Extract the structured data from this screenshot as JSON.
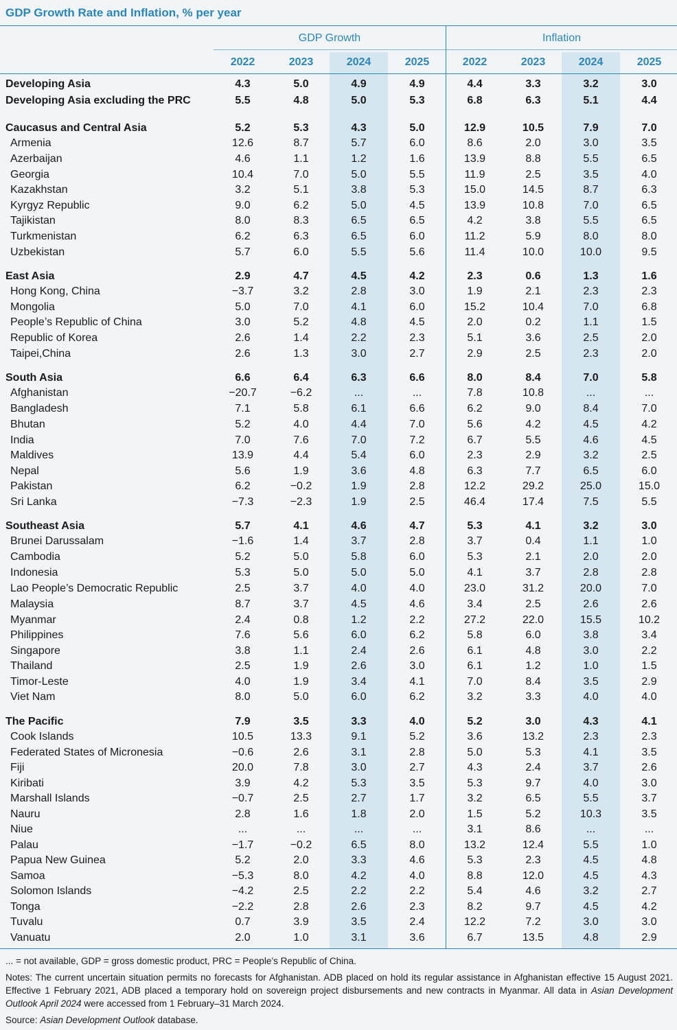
{
  "title": "GDP Growth Rate and Inflation, % per year",
  "groups": [
    "GDP Growth",
    "Inflation"
  ],
  "years": [
    "2022",
    "2023",
    "2024",
    "2025",
    "2022",
    "2023",
    "2024",
    "2025"
  ],
  "colors": {
    "accent": "#2a86b8",
    "shade": "#d5e6f1",
    "background": "#f2f5f8"
  },
  "rows": [
    {
      "name": "Developing Asia",
      "bold": true,
      "values": [
        "4.3",
        "5.0",
        "4.9",
        "4.9",
        "4.4",
        "3.3",
        "3.2",
        "3.0"
      ]
    },
    {
      "name": "Developing Asia excluding the PRC",
      "bold": true,
      "values": [
        "5.5",
        "4.8",
        "5.0",
        "5.3",
        "6.8",
        "6.3",
        "5.1",
        "4.4"
      ]
    },
    {
      "name": "Caucasus and Central Asia",
      "bold": true,
      "values": [
        "5.2",
        "5.3",
        "4.3",
        "5.0",
        "12.9",
        "10.5",
        "7.9",
        "7.0"
      ]
    },
    {
      "name": "Armenia",
      "values": [
        "12.6",
        "8.7",
        "5.7",
        "6.0",
        "8.6",
        "2.0",
        "3.0",
        "3.5"
      ]
    },
    {
      "name": "Azerbaijan",
      "values": [
        "4.6",
        "1.1",
        "1.2",
        "1.6",
        "13.9",
        "8.8",
        "5.5",
        "6.5"
      ]
    },
    {
      "name": "Georgia",
      "values": [
        "10.4",
        "7.0",
        "5.0",
        "5.5",
        "11.9",
        "2.5",
        "3.5",
        "4.0"
      ]
    },
    {
      "name": "Kazakhstan",
      "values": [
        "3.2",
        "5.1",
        "3.8",
        "5.3",
        "15.0",
        "14.5",
        "8.7",
        "6.3"
      ]
    },
    {
      "name": "Kyrgyz Republic",
      "values": [
        "9.0",
        "6.2",
        "5.0",
        "4.5",
        "13.9",
        "10.8",
        "7.0",
        "6.5"
      ]
    },
    {
      "name": "Tajikistan",
      "values": [
        "8.0",
        "8.3",
        "6.5",
        "6.5",
        "4.2",
        "3.8",
        "5.5",
        "6.5"
      ]
    },
    {
      "name": "Turkmenistan",
      "values": [
        "6.2",
        "6.3",
        "6.5",
        "6.0",
        "11.2",
        "5.9",
        "8.0",
        "8.0"
      ]
    },
    {
      "name": "Uzbekistan",
      "values": [
        "5.7",
        "6.0",
        "5.5",
        "5.6",
        "11.4",
        "10.0",
        "10.0",
        "9.5"
      ]
    },
    {
      "name": "East Asia",
      "bold": true,
      "values": [
        "2.9",
        "4.7",
        "4.5",
        "4.2",
        "2.3",
        "0.6",
        "1.3",
        "1.6"
      ]
    },
    {
      "name": "Hong Kong, China",
      "values": [
        "−3.7",
        "3.2",
        "2.8",
        "3.0",
        "1.9",
        "2.1",
        "2.3",
        "2.3"
      ]
    },
    {
      "name": "Mongolia",
      "values": [
        "5.0",
        "7.0",
        "4.1",
        "6.0",
        "15.2",
        "10.4",
        "7.0",
        "6.8"
      ]
    },
    {
      "name": "People’s Republic of China",
      "values": [
        "3.0",
        "5.2",
        "4.8",
        "4.5",
        "2.0",
        "0.2",
        "1.1",
        "1.5"
      ]
    },
    {
      "name": "Republic of Korea",
      "values": [
        "2.6",
        "1.4",
        "2.2",
        "2.3",
        "5.1",
        "3.6",
        "2.5",
        "2.0"
      ]
    },
    {
      "name": "Taipei,China",
      "values": [
        "2.6",
        "1.3",
        "3.0",
        "2.7",
        "2.9",
        "2.5",
        "2.3",
        "2.0"
      ]
    },
    {
      "name": "South Asia",
      "bold": true,
      "values": [
        "6.6",
        "6.4",
        "6.3",
        "6.6",
        "8.0",
        "8.4",
        "7.0",
        "5.8"
      ]
    },
    {
      "name": "Afghanistan",
      "values": [
        "−20.7",
        "−6.2",
        "...",
        "...",
        "7.8",
        "10.8",
        "...",
        "..."
      ]
    },
    {
      "name": "Bangladesh",
      "values": [
        "7.1",
        "5.8",
        "6.1",
        "6.6",
        "6.2",
        "9.0",
        "8.4",
        "7.0"
      ]
    },
    {
      "name": "Bhutan",
      "values": [
        "5.2",
        "4.0",
        "4.4",
        "7.0",
        "5.6",
        "4.2",
        "4.5",
        "4.2"
      ]
    },
    {
      "name": "India",
      "values": [
        "7.0",
        "7.6",
        "7.0",
        "7.2",
        "6.7",
        "5.5",
        "4.6",
        "4.5"
      ]
    },
    {
      "name": "Maldives",
      "values": [
        "13.9",
        "4.4",
        "5.4",
        "6.0",
        "2.3",
        "2.9",
        "3.2",
        "2.5"
      ]
    },
    {
      "name": "Nepal",
      "values": [
        "5.6",
        "1.9",
        "3.6",
        "4.8",
        "6.3",
        "7.7",
        "6.5",
        "6.0"
      ]
    },
    {
      "name": "Pakistan",
      "values": [
        "6.2",
        "−0.2",
        "1.9",
        "2.8",
        "12.2",
        "29.2",
        "25.0",
        "15.0"
      ]
    },
    {
      "name": "Sri Lanka",
      "values": [
        "−7.3",
        "−2.3",
        "1.9",
        "2.5",
        "46.4",
        "17.4",
        "7.5",
        "5.5"
      ]
    },
    {
      "name": "Southeast Asia",
      "bold": true,
      "values": [
        "5.7",
        "4.1",
        "4.6",
        "4.7",
        "5.3",
        "4.1",
        "3.2",
        "3.0"
      ]
    },
    {
      "name": "Brunei Darussalam",
      "values": [
        "−1.6",
        "1.4",
        "3.7",
        "2.8",
        "3.7",
        "0.4",
        "1.1",
        "1.0"
      ]
    },
    {
      "name": "Cambodia",
      "values": [
        "5.2",
        "5.0",
        "5.8",
        "6.0",
        "5.3",
        "2.1",
        "2.0",
        "2.0"
      ]
    },
    {
      "name": "Indonesia",
      "values": [
        "5.3",
        "5.0",
        "5.0",
        "5.0",
        "4.1",
        "3.7",
        "2.8",
        "2.8"
      ]
    },
    {
      "name": "Lao People’s Democratic Republic",
      "values": [
        "2.5",
        "3.7",
        "4.0",
        "4.0",
        "23.0",
        "31.2",
        "20.0",
        "7.0"
      ]
    },
    {
      "name": "Malaysia",
      "values": [
        "8.7",
        "3.7",
        "4.5",
        "4.6",
        "3.4",
        "2.5",
        "2.6",
        "2.6"
      ]
    },
    {
      "name": "Myanmar",
      "values": [
        "2.4",
        "0.8",
        "1.2",
        "2.2",
        "27.2",
        "22.0",
        "15.5",
        "10.2"
      ]
    },
    {
      "name": "Philippines",
      "values": [
        "7.6",
        "5.6",
        "6.0",
        "6.2",
        "5.8",
        "6.0",
        "3.8",
        "3.4"
      ]
    },
    {
      "name": "Singapore",
      "values": [
        "3.8",
        "1.1",
        "2.4",
        "2.6",
        "6.1",
        "4.8",
        "3.0",
        "2.2"
      ]
    },
    {
      "name": "Thailand",
      "values": [
        "2.5",
        "1.9",
        "2.6",
        "3.0",
        "6.1",
        "1.2",
        "1.0",
        "1.5"
      ]
    },
    {
      "name": "Timor-Leste",
      "values": [
        "4.0",
        "1.9",
        "3.4",
        "4.1",
        "7.0",
        "8.4",
        "3.5",
        "2.9"
      ]
    },
    {
      "name": "Viet Nam",
      "values": [
        "8.0",
        "5.0",
        "6.0",
        "6.2",
        "3.2",
        "3.3",
        "4.0",
        "4.0"
      ]
    },
    {
      "name": "The Pacific",
      "bold": true,
      "values": [
        "7.9",
        "3.5",
        "3.3",
        "4.0",
        "5.2",
        "3.0",
        "4.3",
        "4.1"
      ]
    },
    {
      "name": "Cook Islands",
      "values": [
        "10.5",
        "13.3",
        "9.1",
        "5.2",
        "3.6",
        "13.2",
        "2.3",
        "2.3"
      ]
    },
    {
      "name": "Federated States of Micronesia",
      "values": [
        "−0.6",
        "2.6",
        "3.1",
        "2.8",
        "5.0",
        "5.3",
        "4.1",
        "3.5"
      ]
    },
    {
      "name": "Fiji",
      "values": [
        "20.0",
        "7.8",
        "3.0",
        "2.7",
        "4.3",
        "2.4",
        "3.7",
        "2.6"
      ]
    },
    {
      "name": "Kiribati",
      "values": [
        "3.9",
        "4.2",
        "5.3",
        "3.5",
        "5.3",
        "9.7",
        "4.0",
        "3.0"
      ]
    },
    {
      "name": "Marshall Islands",
      "values": [
        "−0.7",
        "2.5",
        "2.7",
        "1.7",
        "3.2",
        "6.5",
        "5.5",
        "3.7"
      ]
    },
    {
      "name": "Nauru",
      "values": [
        "2.8",
        "1.6",
        "1.8",
        "2.0",
        "1.5",
        "5.2",
        "10.3",
        "3.5"
      ]
    },
    {
      "name": "Niue",
      "values": [
        "...",
        "...",
        "...",
        "...",
        "3.1",
        "8.6",
        "...",
        "..."
      ]
    },
    {
      "name": "Palau",
      "values": [
        "−1.7",
        "−0.2",
        "6.5",
        "8.0",
        "13.2",
        "12.4",
        "5.5",
        "1.0"
      ]
    },
    {
      "name": "Papua New Guinea",
      "values": [
        "5.2",
        "2.0",
        "3.3",
        "4.6",
        "5.3",
        "2.3",
        "4.5",
        "4.8"
      ]
    },
    {
      "name": "Samoa",
      "values": [
        "−5.3",
        "8.0",
        "4.2",
        "4.0",
        "8.8",
        "12.0",
        "4.5",
        "4.3"
      ]
    },
    {
      "name": "Solomon Islands",
      "values": [
        "−4.2",
        "2.5",
        "2.2",
        "2.2",
        "5.4",
        "4.6",
        "3.2",
        "2.7"
      ]
    },
    {
      "name": "Tonga",
      "values": [
        "−2.2",
        "2.8",
        "2.6",
        "2.3",
        "8.2",
        "9.7",
        "4.5",
        "4.2"
      ]
    },
    {
      "name": "Tuvalu",
      "values": [
        "0.7",
        "3.9",
        "3.5",
        "2.4",
        "12.2",
        "7.2",
        "3.0",
        "3.0"
      ]
    },
    {
      "name": "Vanuatu",
      "values": [
        "2.0",
        "1.0",
        "3.1",
        "3.6",
        "6.7",
        "13.5",
        "4.8",
        "2.9"
      ]
    }
  ],
  "footnotes": {
    "abbreviations": "... = not available, GDP = gross domestic product, PRC = People’s Republic of China.",
    "notes_before": "Notes: The current uncertain situation permits no forecasts for Afghanistan. ADB placed on hold its regular assistance in Afghanistan effective 15 August 2021. Effective 1 February 2021, ADB placed a temporary hold on sovereign project disbursements and new contracts in Myanmar. All data in ",
    "notes_italic": "Asian Development Outlook April 2024",
    "notes_after": " were accessed from 1 February–31 March 2024.",
    "source_label": "Source: ",
    "source_italic": "Asian Development Outlook",
    "source_after": " database."
  }
}
